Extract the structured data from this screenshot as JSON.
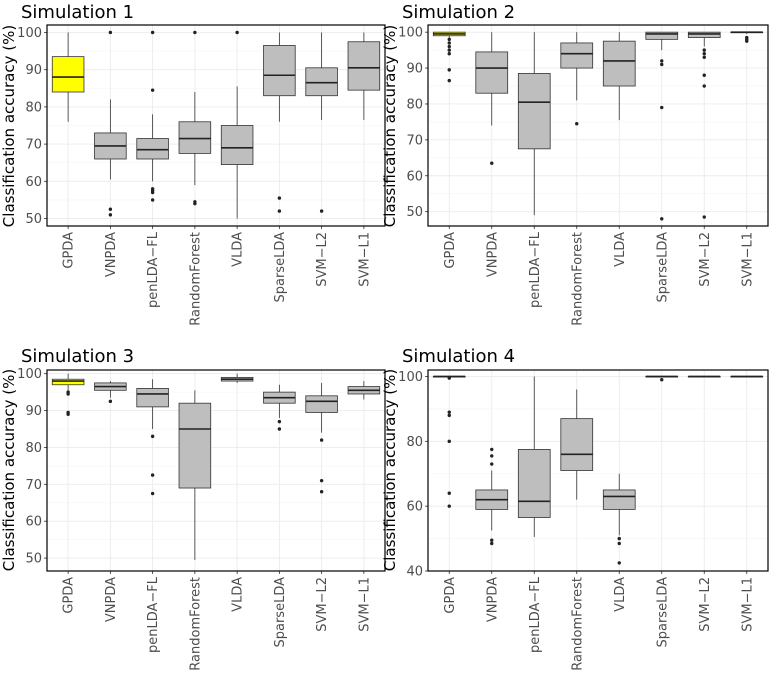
{
  "chart_data": [
    {
      "type": "boxplot",
      "title": "Simulation 1",
      "ylabel": "Classification accuracy (%)",
      "ylim": [
        48,
        102
      ],
      "yticks": [
        50,
        60,
        70,
        80,
        90,
        100
      ],
      "categories": [
        "GPDA",
        "VNPDA",
        "penLDA−FL",
        "RandomForest",
        "VLDA",
        "SparseLDA",
        "SVM−L2",
        "SVM−L1"
      ],
      "fills": [
        "#ffff00",
        "#bebebe",
        "#bebebe",
        "#bebebe",
        "#bebebe",
        "#bebebe",
        "#bebebe",
        "#bebebe"
      ],
      "boxes": [
        {
          "min": 76,
          "q1": 84,
          "median": 88,
          "q3": 93.5,
          "max": 100,
          "outliers": []
        },
        {
          "min": 60.5,
          "q1": 66,
          "median": 69.5,
          "q3": 73,
          "max": 82,
          "outliers": [
            52.5,
            51,
            100
          ]
        },
        {
          "min": 60,
          "q1": 66,
          "median": 68.5,
          "q3": 71.5,
          "max": 78,
          "outliers": [
            58,
            57.5,
            57,
            55,
            84.5,
            100
          ]
        },
        {
          "min": 59,
          "q1": 67.5,
          "median": 71.5,
          "q3": 76,
          "max": 84,
          "outliers": [
            54.5,
            54,
            100
          ]
        },
        {
          "min": 50,
          "q1": 64.5,
          "median": 69,
          "q3": 75,
          "max": 85.5,
          "outliers": [
            100
          ]
        },
        {
          "min": 76,
          "q1": 83,
          "median": 88.5,
          "q3": 96.5,
          "max": 100,
          "outliers": [
            55.5,
            52
          ]
        },
        {
          "min": 76.5,
          "q1": 83,
          "median": 86.5,
          "q3": 90.5,
          "max": 100,
          "outliers": [
            52
          ]
        },
        {
          "min": 76.5,
          "q1": 84.5,
          "median": 90.5,
          "q3": 97.5,
          "max": 100,
          "outliers": []
        }
      ]
    },
    {
      "type": "boxplot",
      "title": "Simulation 2",
      "ylabel": "Classification accuracy (%)",
      "ylim": [
        46,
        102
      ],
      "yticks": [
        50,
        60,
        70,
        80,
        90,
        100
      ],
      "categories": [
        "GPDA",
        "VNPDA",
        "penLDA−FL",
        "RandomForest",
        "VLDA",
        "SparseLDA",
        "SVM−L2",
        "SVM−L1"
      ],
      "fills": [
        "#ffff00",
        "#bebebe",
        "#bebebe",
        "#bebebe",
        "#bebebe",
        "#bebebe",
        "#bebebe",
        "#bebebe"
      ],
      "boxes": [
        {
          "min": 98.5,
          "q1": 99,
          "median": 99.5,
          "q3": 100,
          "max": 100,
          "outliers": [
            98,
            97,
            96,
            95,
            94,
            89.5,
            86.5
          ]
        },
        {
          "min": 74,
          "q1": 83,
          "median": 90,
          "q3": 94.5,
          "max": 100,
          "outliers": [
            63.5
          ]
        },
        {
          "min": 49,
          "q1": 67.5,
          "median": 80.5,
          "q3": 88.5,
          "max": 100,
          "outliers": []
        },
        {
          "min": 81,
          "q1": 90,
          "median": 94,
          "q3": 97,
          "max": 100,
          "outliers": [
            74.5
          ]
        },
        {
          "min": 75.5,
          "q1": 85,
          "median": 92,
          "q3": 97.5,
          "max": 100,
          "outliers": []
        },
        {
          "min": 95,
          "q1": 98,
          "median": 99.5,
          "q3": 100,
          "max": 100,
          "outliers": [
            92,
            91,
            79,
            48
          ]
        },
        {
          "min": 96,
          "q1": 98.5,
          "median": 99.5,
          "q3": 100,
          "max": 100,
          "outliers": [
            95,
            94,
            93,
            88,
            85,
            48.5
          ]
        },
        {
          "min": 99.5,
          "q1": 100,
          "median": 100,
          "q3": 100,
          "max": 100,
          "outliers": [
            98.5,
            98,
            97.5
          ]
        }
      ]
    },
    {
      "type": "boxplot",
      "title": "Simulation 3",
      "ylabel": "Classification accuracy (%)",
      "ylim": [
        46.5,
        101
      ],
      "yticks": [
        50,
        60,
        70,
        80,
        90,
        100
      ],
      "categories": [
        "GPDA",
        "VNPDA",
        "penLDA−FL",
        "RandomForest",
        "VLDA",
        "SparseLDA",
        "SVM−L2",
        "SVM−L1"
      ],
      "fills": [
        "#ffff00",
        "#bebebe",
        "#bebebe",
        "#bebebe",
        "#bebebe",
        "#bebebe",
        "#bebebe",
        "#bebebe"
      ],
      "boxes": [
        {
          "min": 95.5,
          "q1": 97,
          "median": 98,
          "q3": 98.5,
          "max": 100,
          "outliers": [
            95,
            94.5,
            89.5,
            89
          ]
        },
        {
          "min": 93.5,
          "q1": 95.5,
          "median": 96.5,
          "q3": 97.5,
          "max": 98,
          "outliers": [
            92.5
          ]
        },
        {
          "min": 85,
          "q1": 91,
          "median": 94.5,
          "q3": 96,
          "max": 98.5,
          "outliers": [
            83,
            72.5,
            67.5
          ]
        },
        {
          "min": 49.5,
          "q1": 69,
          "median": 85,
          "q3": 92,
          "max": 95.5,
          "outliers": []
        },
        {
          "min": 97.5,
          "q1": 98,
          "median": 98.5,
          "q3": 99,
          "max": 100,
          "outliers": []
        },
        {
          "min": 88,
          "q1": 92,
          "median": 93.5,
          "q3": 95,
          "max": 97,
          "outliers": [
            87,
            85
          ]
        },
        {
          "min": 84,
          "q1": 89.5,
          "median": 92.5,
          "q3": 94,
          "max": 97.5,
          "outliers": [
            82,
            71,
            68
          ]
        },
        {
          "min": 93,
          "q1": 94.5,
          "median": 95.5,
          "q3": 96.5,
          "max": 98,
          "outliers": []
        }
      ]
    },
    {
      "type": "boxplot",
      "title": "Simulation 4",
      "ylabel": "Classification accuracy (%)",
      "ylim": [
        40,
        102
      ],
      "yticks": [
        40,
        60,
        80,
        100
      ],
      "categories": [
        "GPDA",
        "VNPDA",
        "penLDA−FL",
        "RandomForest",
        "VLDA",
        "SparseLDA",
        "SVM−L2",
        "SVM−L1"
      ],
      "fills": [
        "#ffff00",
        "#bebebe",
        "#bebebe",
        "#bebebe",
        "#bebebe",
        "#bebebe",
        "#bebebe",
        "#bebebe"
      ],
      "boxes": [
        {
          "min": 100,
          "q1": 100,
          "median": 100,
          "q3": 100,
          "max": 100,
          "outliers": [
            99.5,
            89,
            88,
            80,
            64,
            60
          ]
        },
        {
          "min": 52.5,
          "q1": 59,
          "median": 62,
          "q3": 65,
          "max": 71,
          "outliers": [
            77.5,
            75.5,
            73,
            49.5,
            48.5
          ]
        },
        {
          "min": 50.5,
          "q1": 56.5,
          "median": 61.5,
          "q3": 77.5,
          "max": 100,
          "outliers": []
        },
        {
          "min": 62,
          "q1": 71,
          "median": 76,
          "q3": 87,
          "max": 96,
          "outliers": []
        },
        {
          "min": 51,
          "q1": 59,
          "median": 63,
          "q3": 65,
          "max": 70,
          "outliers": [
            50,
            48.5,
            42.5
          ]
        },
        {
          "min": 100,
          "q1": 100,
          "median": 100,
          "q3": 100,
          "max": 100,
          "outliers": [
            99
          ]
        },
        {
          "min": 100,
          "q1": 100,
          "median": 100,
          "q3": 100,
          "max": 100,
          "outliers": []
        },
        {
          "min": 100,
          "q1": 100,
          "median": 100,
          "q3": 100,
          "max": 100,
          "outliers": []
        }
      ]
    }
  ]
}
